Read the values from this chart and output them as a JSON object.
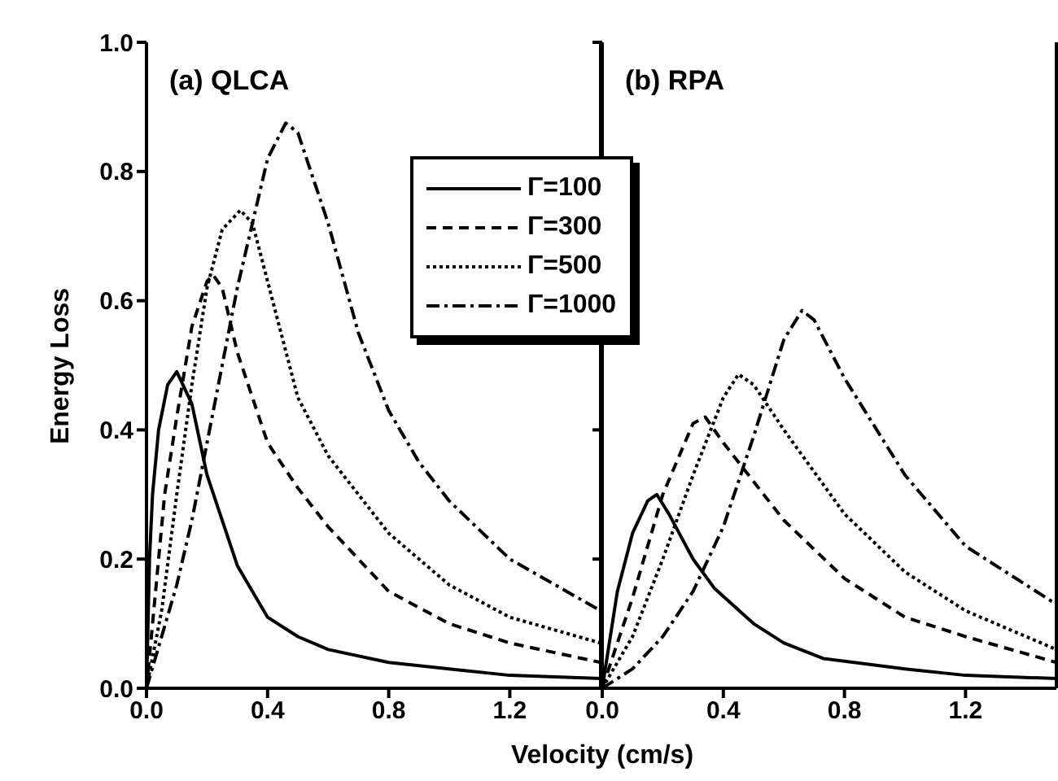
{
  "chart_data": [
    {
      "type": "line",
      "title": "(a) QLCA",
      "xlabel": "Velocity (cm/s)",
      "ylabel": "Energy Loss",
      "xlim": [
        0,
        1.5
      ],
      "xticks": [
        {
          "value": 0,
          "label": "0.0"
        },
        0.4,
        0.8,
        1.2
      ],
      "ylim": [
        0,
        1
      ],
      "yticks": [
        {
          "value": 0,
          "label": "0.0"
        },
        0.2,
        0.4,
        0.6,
        0.8,
        {
          "value": 1,
          "label": "1.0"
        }
      ],
      "legend": "top right",
      "grid": false,
      "marker": "none",
      "series": [
        {
          "name": "Γ=100",
          "color": "#000000",
          "line_style": "solid",
          "x": [
            0,
            0.01,
            0.02,
            0.04,
            0.07,
            0.1,
            0.15,
            0.2,
            0.3,
            0.4,
            0.5,
            0.6,
            0.8,
            1.0,
            1.2,
            1.5
          ],
          "values": [
            0,
            0.2,
            0.3,
            0.4,
            0.47,
            0.49,
            0.44,
            0.33,
            0.19,
            0.11,
            0.08,
            0.06,
            0.04,
            0.03,
            0.02,
            0.015
          ]
        },
        {
          "name": "Γ=300",
          "color": "#000000",
          "line_style": "dashed",
          "x": [
            0,
            0.03,
            0.06,
            0.1,
            0.15,
            0.2,
            0.22,
            0.25,
            0.3,
            0.4,
            0.5,
            0.6,
            0.8,
            1.0,
            1.2,
            1.5
          ],
          "values": [
            0,
            0.15,
            0.3,
            0.42,
            0.56,
            0.63,
            0.64,
            0.62,
            0.52,
            0.38,
            0.31,
            0.25,
            0.15,
            0.1,
            0.07,
            0.04
          ]
        },
        {
          "name": "Γ=500",
          "color": "#000000",
          "line_style": "dotted",
          "x": [
            0,
            0.05,
            0.1,
            0.15,
            0.2,
            0.25,
            0.31,
            0.35,
            0.4,
            0.5,
            0.6,
            0.8,
            1.0,
            1.2,
            1.5
          ],
          "values": [
            0,
            0.12,
            0.3,
            0.47,
            0.62,
            0.71,
            0.74,
            0.72,
            0.63,
            0.45,
            0.36,
            0.24,
            0.16,
            0.11,
            0.07
          ]
        },
        {
          "name": "Γ=1000",
          "color": "#000000",
          "line_style": "dashdot",
          "x": [
            0,
            0.05,
            0.1,
            0.15,
            0.2,
            0.25,
            0.3,
            0.35,
            0.4,
            0.46,
            0.5,
            0.6,
            0.7,
            0.8,
            0.9,
            1.0,
            1.2,
            1.5
          ],
          "values": [
            0,
            0.08,
            0.16,
            0.26,
            0.38,
            0.5,
            0.62,
            0.72,
            0.82,
            0.875,
            0.86,
            0.72,
            0.55,
            0.43,
            0.35,
            0.29,
            0.2,
            0.12
          ]
        }
      ]
    },
    {
      "type": "line",
      "title": "(b) RPA",
      "xlim": [
        0,
        1.5
      ],
      "xticks": [
        {
          "value": 0,
          "label": "0.0"
        },
        0.4,
        0.8,
        1.2
      ],
      "ylim": [
        0,
        1
      ],
      "yticks": [
        0,
        0.2,
        0.4,
        0.6,
        0.8,
        1
      ],
      "tick_labels": "x",
      "grid": false,
      "marker": "none",
      "series": [
        {
          "color": "#000000",
          "line_style": "solid",
          "x": [
            0,
            0.05,
            0.1,
            0.15,
            0.18,
            0.22,
            0.3,
            0.37,
            0.5,
            0.6,
            0.73,
            1.0,
            1.2,
            1.5
          ],
          "values": [
            0,
            0.15,
            0.24,
            0.29,
            0.3,
            0.27,
            0.2,
            0.155,
            0.1,
            0.07,
            0.046,
            0.03,
            0.02,
            0.015
          ]
        },
        {
          "color": "#000000",
          "line_style": "dashed",
          "x": [
            0,
            0.1,
            0.2,
            0.3,
            0.34,
            0.4,
            0.5,
            0.6,
            0.8,
            1.0,
            1.2,
            1.5
          ],
          "values": [
            0,
            0.14,
            0.3,
            0.41,
            0.42,
            0.38,
            0.32,
            0.26,
            0.17,
            0.11,
            0.08,
            0.04
          ]
        },
        {
          "color": "#000000",
          "line_style": "dotted",
          "x": [
            0,
            0.1,
            0.2,
            0.3,
            0.4,
            0.45,
            0.5,
            0.6,
            0.8,
            1.0,
            1.2,
            1.5
          ],
          "values": [
            0,
            0.08,
            0.2,
            0.33,
            0.45,
            0.486,
            0.47,
            0.4,
            0.27,
            0.18,
            0.12,
            0.06
          ]
        },
        {
          "color": "#000000",
          "line_style": "dashdot",
          "x": [
            0,
            0.1,
            0.2,
            0.3,
            0.4,
            0.5,
            0.6,
            0.66,
            0.7,
            0.8,
            1.0,
            1.2,
            1.5
          ],
          "values": [
            0,
            0.03,
            0.08,
            0.15,
            0.25,
            0.39,
            0.54,
            0.585,
            0.57,
            0.48,
            0.33,
            0.22,
            0.13
          ]
        }
      ]
    }
  ]
}
